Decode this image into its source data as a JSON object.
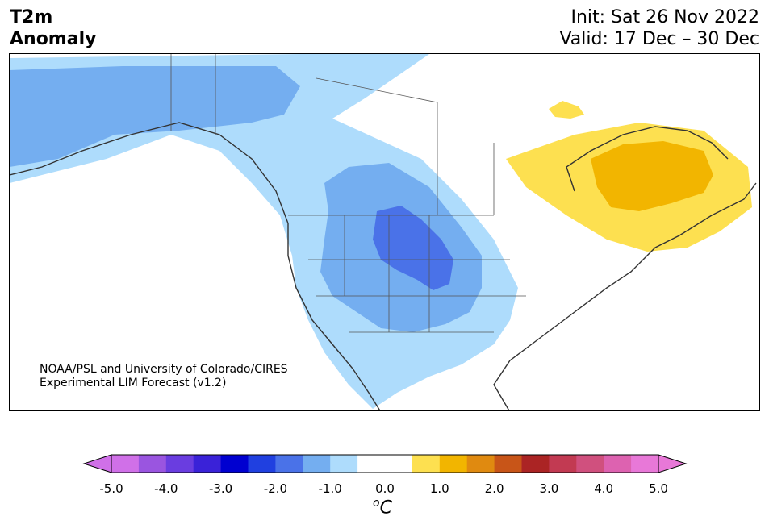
{
  "header": {
    "title_line1": "T2m",
    "title_line2": "Anomaly",
    "init": "Init: Sat 26 Nov 2022",
    "valid": "Valid: 17 Dec – 30 Dec"
  },
  "credit": {
    "line1": "NOAA/PSL and University of Colorado/CIRES",
    "line2": "Experimental LIM Forecast (v1.2)"
  },
  "colorbar": {
    "tick_labels": [
      "-5.0",
      "-4.0",
      "-3.0",
      "-2.0",
      "-1.0",
      "0.0",
      "1.0",
      "2.0",
      "3.0",
      "4.0",
      "5.0"
    ],
    "unit_base": "C",
    "unit_sup": "o",
    "colors": [
      "#d070e8",
      "#9a55e0",
      "#6a3de0",
      "#3a22d8",
      "#0000d0",
      "#2040e0",
      "#4a72e8",
      "#74aef0",
      "#aedcfc",
      "#ffffff",
      "#ffffff",
      "#fde050",
      "#f2b500",
      "#e08a10",
      "#c85518",
      "#ab2424",
      "#c23a52",
      "#d0507e",
      "#dd62b0",
      "#e878d8"
    ]
  },
  "map": {
    "region": "North America",
    "anomaly_colors": {
      "cool_light": "#aedcfc",
      "cool_mid": "#74aef0",
      "cool_strong": "#4a72e8",
      "warm_light": "#fde050",
      "warm_mid": "#f2b500"
    }
  }
}
